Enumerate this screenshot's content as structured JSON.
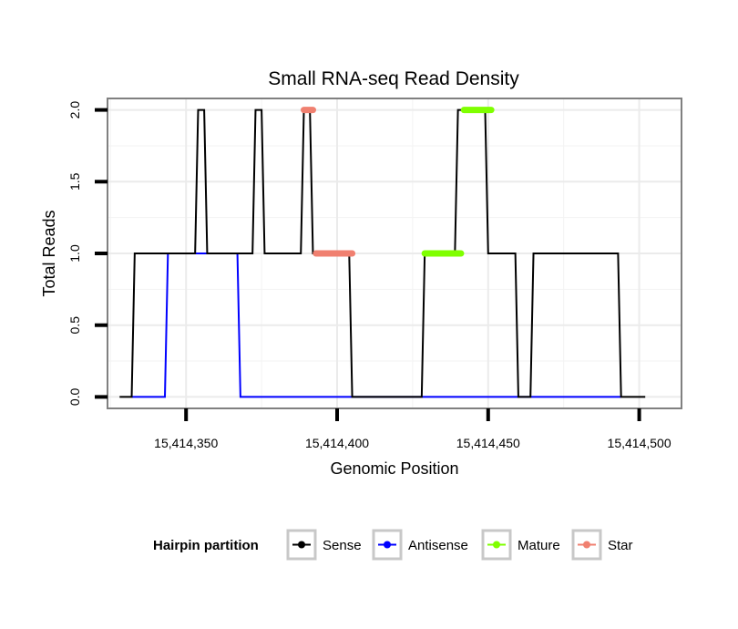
{
  "chart_data": {
    "type": "line",
    "title": "Small RNA-seq Read Density",
    "xlabel": "Genomic Position",
    "ylabel": "Total Reads",
    "xlim": [
      15414324,
      15414514
    ],
    "ylim": [
      -0.08,
      2.08
    ],
    "x_ticks": [
      15414350,
      15414400,
      15414450,
      15414500
    ],
    "x_tick_labels": [
      "15,414,350",
      "15,414,400",
      "15,414,450",
      "15,414,500"
    ],
    "y_ticks": [
      0,
      0.5,
      1,
      1.5,
      2
    ],
    "y_tick_labels": [
      "0.0",
      "0.5",
      "1.0",
      "1.5",
      "2.0"
    ],
    "grid": true,
    "legend": {
      "title": "Hairpin partition",
      "position": "bottom",
      "entries": [
        "Sense",
        "Antisense",
        "Mature",
        "Star"
      ]
    },
    "series": [
      {
        "name": "Sense",
        "color": "#000000",
        "style": "line",
        "x": [
          15414328,
          15414332,
          15414333,
          15414353,
          15414354,
          15414356,
          15414357,
          15414372,
          15414373,
          15414375,
          15414376,
          15414388,
          15414389,
          15414391,
          15414392,
          15414404,
          15414405,
          15414428,
          15414429,
          15414439,
          15414440,
          15414449,
          15414450,
          15414459,
          15414460,
          15414464,
          15414465,
          15414493,
          15414494,
          15414502
        ],
        "y": [
          0,
          0,
          1,
          1,
          2,
          2,
          1,
          1,
          2,
          2,
          1,
          1,
          2,
          2,
          1,
          1,
          0,
          0,
          1,
          1,
          2,
          2,
          1,
          1,
          0,
          0,
          1,
          1,
          0,
          0
        ]
      },
      {
        "name": "Antisense",
        "color": "#0000ff",
        "style": "line",
        "x": [
          15414332,
          15414343,
          15414344,
          15414367,
          15414368,
          15414494
        ],
        "y": [
          0,
          0,
          1,
          1,
          0,
          0
        ]
      },
      {
        "name": "Mature",
        "color": "#7fff00",
        "style": "thick",
        "segments": [
          {
            "x": [
              15414429,
              15414441
            ],
            "y": [
              1,
              1
            ]
          },
          {
            "x": [
              15414442,
              15414451
            ],
            "y": [
              2,
              2
            ]
          }
        ]
      },
      {
        "name": "Star",
        "color": "#f08070",
        "style": "thick",
        "segments": [
          {
            "x": [
              15414389,
              15414392
            ],
            "y": [
              2,
              2
            ]
          },
          {
            "x": [
              15414393,
              15414405
            ],
            "y": [
              1,
              1
            ]
          }
        ]
      }
    ]
  }
}
